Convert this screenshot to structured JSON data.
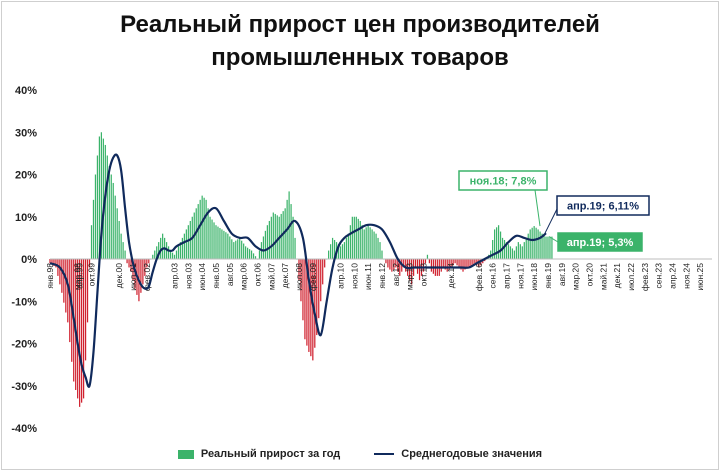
{
  "chart_data": {
    "type": "bar",
    "title_line1": "Реальный прирост цен производителей",
    "title_line2": "промышленных товаров",
    "ylim": [
      -40,
      40
    ],
    "y_ticks": [
      40,
      30,
      20,
      10,
      0,
      -10,
      -20,
      -30,
      -40
    ],
    "y_tick_labels": [
      "40%",
      "30%",
      "20%",
      "10%",
      "0%",
      "-10%",
      "-20%",
      "-30%",
      "-40%"
    ],
    "x_tick_labels": [
      {
        "label": "янв.98",
        "month": 0
      },
      {
        "label": "мар.98",
        "month": 14
      },
      {
        "label": "апр.99",
        "month": 15
      },
      {
        "label": "окт.99",
        "month": 21
      },
      {
        "label": "дек.00",
        "month": 35
      },
      {
        "label": "июл.01",
        "month": 42
      },
      {
        "label": "фев.02",
        "month": 49
      },
      {
        "label": "апр.03",
        "month": 63
      },
      {
        "label": "ноя.03",
        "month": 70
      },
      {
        "label": "июн.04",
        "month": 77
      },
      {
        "label": "янв.05",
        "month": 84
      },
      {
        "label": "авг.05",
        "month": 91
      },
      {
        "label": "мар.06",
        "month": 98
      },
      {
        "label": "окт.06",
        "month": 105
      },
      {
        "label": "май.07",
        "month": 112
      },
      {
        "label": "дек.07",
        "month": 119
      },
      {
        "label": "июл.08",
        "month": 126
      },
      {
        "label": "фев.09",
        "month": 133
      },
      {
        "label": "апр.10",
        "month": 147
      },
      {
        "label": "ноя.10",
        "month": 154
      },
      {
        "label": "июн.11",
        "month": 161
      },
      {
        "label": "янв.12",
        "month": 168
      },
      {
        "label": "авг.12",
        "month": 175
      },
      {
        "label": "мар.13",
        "month": 182
      },
      {
        "label": "окт.13",
        "month": 189
      },
      {
        "label": "дек.14",
        "month": 203
      },
      {
        "label": "фев.16",
        "month": 217
      },
      {
        "label": "сен.16",
        "month": 224
      },
      {
        "label": "апр.17",
        "month": 231
      },
      {
        "label": "ноя.17",
        "month": 238
      },
      {
        "label": "июн.18",
        "month": 245
      },
      {
        "label": "янв.19",
        "month": 252
      },
      {
        "label": "авг.19",
        "month": 259
      },
      {
        "label": "мар.20",
        "month": 266
      },
      {
        "label": "окт.20",
        "month": 273
      },
      {
        "label": "май.21",
        "month": 280
      },
      {
        "label": "дек.21",
        "month": 287
      },
      {
        "label": "июл.22",
        "month": 294
      },
      {
        "label": "фев.23",
        "month": 301
      },
      {
        "label": "сен.23",
        "month": 308
      },
      {
        "label": "апр.24",
        "month": 315
      },
      {
        "label": "ноя.24",
        "month": 322
      },
      {
        "label": "июн.25",
        "month": 329
      }
    ],
    "x_range_months": [
      0,
      335
    ],
    "bar_knots": [
      [
        0,
        -1
      ],
      [
        3,
        -2
      ],
      [
        6,
        -8
      ],
      [
        9,
        -15
      ],
      [
        12,
        -29
      ],
      [
        15,
        -35
      ],
      [
        17,
        -33
      ],
      [
        19,
        -15
      ],
      [
        20,
        -2
      ],
      [
        21,
        8
      ],
      [
        23,
        20
      ],
      [
        25,
        29
      ],
      [
        26,
        30
      ],
      [
        28,
        27
      ],
      [
        30,
        22
      ],
      [
        32,
        18
      ],
      [
        34,
        12
      ],
      [
        36,
        6
      ],
      [
        38,
        2
      ],
      [
        39,
        -1
      ],
      [
        41,
        -3
      ],
      [
        43,
        -7
      ],
      [
        45,
        -10
      ],
      [
        47,
        -6
      ],
      [
        49,
        -2
      ],
      [
        51,
        0
      ],
      [
        53,
        2
      ],
      [
        55,
        4
      ],
      [
        57,
        6
      ],
      [
        59,
        4
      ],
      [
        61,
        2
      ],
      [
        63,
        1
      ],
      [
        65,
        3
      ],
      [
        68,
        6
      ],
      [
        71,
        9
      ],
      [
        74,
        12
      ],
      [
        77,
        15
      ],
      [
        79,
        14
      ],
      [
        81,
        10
      ],
      [
        84,
        8
      ],
      [
        87,
        7
      ],
      [
        90,
        6
      ],
      [
        93,
        4
      ],
      [
        96,
        5
      ],
      [
        99,
        3
      ],
      [
        102,
        2
      ],
      [
        105,
        0
      ],
      [
        107,
        4
      ],
      [
        110,
        8
      ],
      [
        113,
        11
      ],
      [
        116,
        10
      ],
      [
        119,
        12
      ],
      [
        121,
        16
      ],
      [
        123,
        10
      ],
      [
        125,
        0
      ],
      [
        127,
        -10
      ],
      [
        129,
        -19
      ],
      [
        131,
        -22
      ],
      [
        133,
        -24
      ],
      [
        135,
        -18
      ],
      [
        137,
        -10
      ],
      [
        139,
        -2
      ],
      [
        141,
        2
      ],
      [
        143,
        5
      ],
      [
        145,
        4
      ],
      [
        147,
        3
      ],
      [
        149,
        4
      ],
      [
        151,
        6
      ],
      [
        153,
        10
      ],
      [
        155,
        10
      ],
      [
        157,
        9
      ],
      [
        159,
        7
      ],
      [
        161,
        8
      ],
      [
        163,
        7
      ],
      [
        165,
        6
      ],
      [
        167,
        4
      ],
      [
        169,
        0
      ],
      [
        171,
        -2
      ],
      [
        173,
        -3
      ],
      [
        175,
        -2
      ],
      [
        177,
        -4
      ],
      [
        179,
        -2
      ],
      [
        181,
        -4
      ],
      [
        183,
        -6
      ],
      [
        185,
        -2
      ],
      [
        187,
        -5
      ],
      [
        189,
        -3
      ],
      [
        191,
        1
      ],
      [
        193,
        -3
      ],
      [
        195,
        -4
      ],
      [
        197,
        -4
      ],
      [
        199,
        -2
      ],
      [
        201,
        -3
      ],
      [
        203,
        -2
      ],
      [
        205,
        -1
      ],
      [
        207,
        -2
      ],
      [
        209,
        -3
      ],
      [
        211,
        -2
      ],
      [
        213,
        -2
      ],
      [
        215,
        -1
      ],
      [
        217,
        -2
      ],
      [
        219,
        -1
      ],
      [
        221,
        0
      ],
      [
        223,
        2
      ],
      [
        225,
        7
      ],
      [
        227,
        8
      ],
      [
        229,
        5
      ],
      [
        231,
        4
      ],
      [
        233,
        3
      ],
      [
        235,
        2
      ],
      [
        237,
        4
      ],
      [
        239,
        3
      ],
      [
        241,
        5
      ],
      [
        243,
        7
      ],
      [
        245,
        7.8
      ],
      [
        247,
        7
      ],
      [
        249,
        6
      ],
      [
        251,
        5.3
      ],
      [
        254,
        5.3
      ]
    ],
    "series": [
      {
        "name": "Реальный прирост за год",
        "type": "bar",
        "color_positive": "#3bb36a",
        "color_negative": "#d0202e"
      },
      {
        "name": "Среднегодовые значения",
        "type": "line",
        "color": "#102a5c"
      }
    ],
    "line_knots": [
      [
        0,
        -1
      ],
      [
        5,
        -2
      ],
      [
        9,
        -6
      ],
      [
        12,
        -14
      ],
      [
        14,
        -20
      ],
      [
        16,
        -25
      ],
      [
        18,
        -28
      ],
      [
        20,
        -30
      ],
      [
        22,
        -22
      ],
      [
        24,
        -8
      ],
      [
        26,
        6
      ],
      [
        28,
        15
      ],
      [
        30,
        21
      ],
      [
        32,
        24
      ],
      [
        34,
        24.5
      ],
      [
        36,
        21
      ],
      [
        38,
        12
      ],
      [
        40,
        4
      ],
      [
        42,
        -1
      ],
      [
        44,
        -4
      ],
      [
        46,
        -6
      ],
      [
        48,
        -7
      ],
      [
        50,
        -6.5
      ],
      [
        52,
        -3
      ],
      [
        54,
        0
      ],
      [
        56,
        2
      ],
      [
        58,
        2.5
      ],
      [
        60,
        2
      ],
      [
        62,
        2
      ],
      [
        64,
        3
      ],
      [
        68,
        4
      ],
      [
        72,
        5
      ],
      [
        76,
        8
      ],
      [
        80,
        11
      ],
      [
        84,
        12
      ],
      [
        88,
        9
      ],
      [
        92,
        6
      ],
      [
        96,
        5
      ],
      [
        100,
        5
      ],
      [
        104,
        3
      ],
      [
        108,
        2
      ],
      [
        112,
        3
      ],
      [
        116,
        5
      ],
      [
        120,
        7
      ],
      [
        124,
        9
      ],
      [
        128,
        5
      ],
      [
        131,
        -5
      ],
      [
        134,
        -13
      ],
      [
        137,
        -18
      ],
      [
        140,
        -10
      ],
      [
        143,
        -2
      ],
      [
        146,
        3
      ],
      [
        149,
        5
      ],
      [
        152,
        6
      ],
      [
        156,
        7
      ],
      [
        160,
        8
      ],
      [
        164,
        8
      ],
      [
        168,
        7
      ],
      [
        172,
        4
      ],
      [
        176,
        0
      ],
      [
        180,
        -2
      ],
      [
        184,
        -2
      ],
      [
        188,
        -2
      ],
      [
        192,
        -2
      ],
      [
        196,
        -2
      ],
      [
        200,
        -2
      ],
      [
        204,
        -2
      ],
      [
        208,
        -2
      ],
      [
        212,
        -2
      ],
      [
        216,
        -1
      ],
      [
        220,
        0
      ],
      [
        224,
        1
      ],
      [
        228,
        2
      ],
      [
        232,
        4
      ],
      [
        236,
        5.5
      ],
      [
        240,
        5
      ],
      [
        244,
        4.5
      ],
      [
        248,
        5
      ],
      [
        251,
        6.11
      ]
    ],
    "annotations": [
      {
        "text": "ноя.18; 7,8%",
        "border": "#3bb36a",
        "color": "#3bb36a",
        "bg": "#ffffff"
      },
      {
        "text": "апр.19; 6,11%",
        "border": "#102a5c",
        "color": "#102a5c",
        "bg": "#ffffff"
      },
      {
        "text": "апр.19; 5,3%",
        "border": "#3bb36a",
        "color": "#ffffff",
        "bg": "#3bb36a"
      }
    ]
  }
}
